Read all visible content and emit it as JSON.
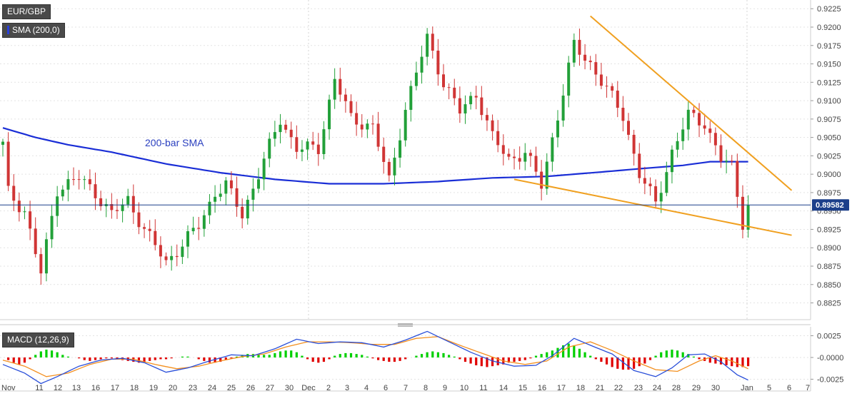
{
  "pair_label": "EUR/GBP",
  "sma_label": "SMA (200,0)",
  "macd_label": "MACD (12,26,9)",
  "sma_annotation": "200-bar SMA",
  "current_price": "0.89582",
  "colors": {
    "up": "#22a039",
    "down": "#d03535",
    "sma": "#1a2ed6",
    "trend": "#f0a020",
    "macd": "#2a4fd9",
    "signal": "#f39020",
    "hist_up": "#00d000",
    "hist_down": "#e00000",
    "price_line": "#1c3f8a"
  },
  "chart_data": [
    {
      "type": "candlestick",
      "title": "EUR/GBP",
      "y_ticks": [
        "0.9225",
        "0.9200",
        "0.9175",
        "0.9150",
        "0.9125",
        "0.9100",
        "0.9075",
        "0.9050",
        "0.9025",
        "0.9000",
        "0.8975",
        "0.8950",
        "0.8925",
        "0.8900",
        "0.8875",
        "0.8850",
        "0.8825"
      ],
      "ylim": [
        0.881,
        0.9232
      ],
      "x_ticks": [
        "Nov",
        "11",
        "12",
        "13",
        "16",
        "17",
        "18",
        "19",
        "20",
        "23",
        "24",
        "25",
        "26",
        "27",
        "30",
        "Dec",
        "2",
        "3",
        "4",
        "6",
        "7",
        "8",
        "9",
        "10",
        "11",
        "14",
        "15",
        "16",
        "17",
        "18",
        "21",
        "22",
        "23",
        "24",
        "28",
        "29",
        "30",
        "Jan",
        "5",
        "6",
        "7"
      ],
      "close_anchors": [
        [
          0,
          0.904
        ],
        [
          1,
          0.8975
        ],
        [
          4,
          0.895
        ],
        [
          7,
          0.8865
        ],
        [
          10,
          0.898
        ],
        [
          14,
          0.8995
        ],
        [
          17,
          0.8975
        ],
        [
          20,
          0.8945
        ],
        [
          23,
          0.8965
        ],
        [
          26,
          0.8925
        ],
        [
          30,
          0.888
        ],
        [
          33,
          0.8905
        ],
        [
          36,
          0.893
        ],
        [
          39,
          0.8975
        ],
        [
          41,
          0.8985
        ],
        [
          44,
          0.8945
        ],
        [
          47,
          0.9
        ],
        [
          51,
          0.9075
        ],
        [
          54,
          0.9035
        ],
        [
          58,
          0.9035
        ],
        [
          61,
          0.913
        ],
        [
          64,
          0.9075
        ],
        [
          68,
          0.9065
        ],
        [
          71,
          0.899
        ],
        [
          74,
          0.909
        ],
        [
          78,
          0.9185
        ],
        [
          81,
          0.9125
        ],
        [
          84,
          0.9085
        ],
        [
          87,
          0.911
        ],
        [
          90,
          0.905
        ],
        [
          93,
          0.902
        ],
        [
          96,
          0.903
        ],
        [
          99,
          0.8985
        ],
        [
          102,
          0.908
        ],
        [
          105,
          0.9175
        ],
        [
          108,
          0.915
        ],
        [
          111,
          0.9115
        ],
        [
          114,
          0.908
        ],
        [
          117,
          0.9
        ],
        [
          120,
          0.896
        ],
        [
          123,
          0.903
        ],
        [
          126,
          0.908
        ],
        [
          129,
          0.907
        ],
        [
          132,
          0.902
        ],
        [
          134,
          0.901
        ],
        [
          136,
          0.8935
        ],
        [
          137,
          0.8958
        ]
      ],
      "sma_200": [
        [
          0,
          0.9063
        ],
        [
          6,
          0.905
        ],
        [
          12,
          0.904
        ],
        [
          20,
          0.903
        ],
        [
          30,
          0.9014
        ],
        [
          40,
          0.9002
        ],
        [
          50,
          0.8993
        ],
        [
          60,
          0.8987
        ],
        [
          70,
          0.8987
        ],
        [
          80,
          0.899
        ],
        [
          90,
          0.8995
        ],
        [
          100,
          0.8997
        ],
        [
          110,
          0.9003
        ],
        [
          118,
          0.9008
        ],
        [
          125,
          0.9012
        ],
        [
          130,
          0.9017
        ],
        [
          137,
          0.9017
        ]
      ],
      "trendlines": [
        {
          "name": "upper",
          "from": [
            108,
            0.9215
          ],
          "to": [
            145,
            0.8978
          ]
        },
        {
          "name": "lower",
          "from": [
            94,
            0.8993
          ],
          "to": [
            145,
            0.8917
          ]
        }
      ],
      "current_price": 0.89582
    },
    {
      "type": "macd",
      "title": "MACD (12,26,9)",
      "y_ticks": [
        "0.0025",
        "-0.0000",
        "-0.0025"
      ],
      "ylim": [
        -0.0032,
        0.0032
      ],
      "histogram": [
        0,
        -0.0003,
        -0.0006,
        -0.0008,
        -0.0006,
        -0.0002,
        0.0003,
        0.0007,
        0.0009,
        0.0008,
        0.0006,
        0.0003,
        0.0001,
        0,
        -0.0001,
        -0.0003,
        -0.0004,
        -0.0003,
        -0.0002,
        -0.0001,
        -0.0001,
        -0.0002,
        -0.0003,
        -0.0004,
        -0.0005,
        -0.0006,
        -0.0005,
        -0.0004,
        -0.0003,
        -0.0002,
        -0.0002,
        -0.0001,
        0,
        0.0001,
        0.0001,
        0,
        -0.0002,
        -0.0004,
        -0.0006,
        -0.0006,
        -0.0005,
        -0.0003,
        -0.0001,
        0.0001,
        0.0003,
        0.0004,
        0.0004,
        0.0004,
        0.0003,
        0.0003,
        0.0005,
        0.0007,
        0.0008,
        0.0008,
        0.0006,
        0.0002,
        -0.0002,
        -0.0005,
        -0.0006,
        -0.0005,
        -0.0002,
        0.0002,
        0.0004,
        0.0005,
        0.0005,
        0.0004,
        0.0003,
        0.0001,
        -0.0001,
        -0.0003,
        -0.0004,
        -0.0005,
        -0.0005,
        -0.0004,
        -0.0002,
        0,
        0.0002,
        0.0004,
        0.0006,
        0.0007,
        0.0006,
        0.0005,
        0.0003,
        0.0001,
        -0.0002,
        -0.0005,
        -0.0007,
        -0.0009,
        -0.001,
        -0.0011,
        -0.001,
        -0.0009,
        -0.0008,
        -0.0006,
        -0.0005,
        -0.0004,
        -0.0003,
        -0.0001,
        0.0002,
        0.0004,
        0.0006,
        0.0008,
        0.0011,
        0.0014,
        0.0016,
        0.0014,
        0.001,
        0.0006,
        0.0002,
        -0.0002,
        -0.0005,
        -0.0008,
        -0.0011,
        -0.0013,
        -0.0014,
        -0.0014,
        -0.0013,
        -0.001,
        -0.0007,
        -0.0003,
        0.0002,
        0.0006,
        0.0008,
        0.0009,
        0.0008,
        0.0006,
        0.0004,
        0.0001,
        -0.0002,
        -0.0004,
        -0.0006,
        -0.0007,
        -0.0008,
        -0.0009,
        -0.001,
        -0.0011,
        -0.0011,
        -0.001
      ],
      "macd_anchors": [
        [
          0,
          -0.0008
        ],
        [
          4,
          -0.0018
        ],
        [
          7,
          -0.003
        ],
        [
          10,
          -0.0022
        ],
        [
          14,
          -0.001
        ],
        [
          18,
          -0.0003
        ],
        [
          22,
          -0.0001
        ],
        [
          26,
          -0.0006
        ],
        [
          30,
          -0.0017
        ],
        [
          34,
          -0.0012
        ],
        [
          38,
          -0.0004
        ],
        [
          42,
          0.0003
        ],
        [
          46,
          0.0002
        ],
        [
          50,
          0.001
        ],
        [
          54,
          0.0021
        ],
        [
          58,
          0.0016
        ],
        [
          62,
          0.0018
        ],
        [
          66,
          0.0017
        ],
        [
          70,
          0.0012
        ],
        [
          74,
          0.002
        ],
        [
          78,
          0.003
        ],
        [
          82,
          0.0018
        ],
        [
          86,
          0.0006
        ],
        [
          90,
          -0.0004
        ],
        [
          94,
          -0.001
        ],
        [
          98,
          -0.0009
        ],
        [
          101,
          0.0002
        ],
        [
          105,
          0.0022
        ],
        [
          108,
          0.0014
        ],
        [
          112,
          0.0004
        ],
        [
          116,
          -0.0015
        ],
        [
          120,
          -0.0022
        ],
        [
          123,
          -0.0012
        ],
        [
          126,
          0.0003
        ],
        [
          129,
          0.0004
        ],
        [
          132,
          -0.0005
        ],
        [
          135,
          -0.002
        ],
        [
          137,
          -0.0026
        ]
      ],
      "signal_anchors": [
        [
          0,
          -0.0003
        ],
        [
          4,
          -0.001
        ],
        [
          8,
          -0.0022
        ],
        [
          12,
          -0.0018
        ],
        [
          16,
          -0.0008
        ],
        [
          20,
          -0.0002
        ],
        [
          24,
          -0.0002
        ],
        [
          28,
          -0.0008
        ],
        [
          32,
          -0.0013
        ],
        [
          36,
          -0.001
        ],
        [
          40,
          -0.0004
        ],
        [
          44,
          0.0001
        ],
        [
          48,
          0.0004
        ],
        [
          52,
          0.0012
        ],
        [
          56,
          0.0018
        ],
        [
          60,
          0.0018
        ],
        [
          64,
          0.0017
        ],
        [
          68,
          0.0015
        ],
        [
          72,
          0.0015
        ],
        [
          76,
          0.0022
        ],
        [
          80,
          0.0024
        ],
        [
          84,
          0.0014
        ],
        [
          88,
          0.0005
        ],
        [
          92,
          -0.0004
        ],
        [
          96,
          -0.0008
        ],
        [
          100,
          -0.0004
        ],
        [
          104,
          0.0012
        ],
        [
          108,
          0.0018
        ],
        [
          112,
          0.0008
        ],
        [
          116,
          -0.0004
        ],
        [
          120,
          -0.0014
        ],
        [
          124,
          -0.0016
        ],
        [
          128,
          -0.0004
        ],
        [
          131,
          0.0002
        ],
        [
          134,
          -0.0004
        ],
        [
          137,
          -0.0013
        ]
      ]
    }
  ]
}
